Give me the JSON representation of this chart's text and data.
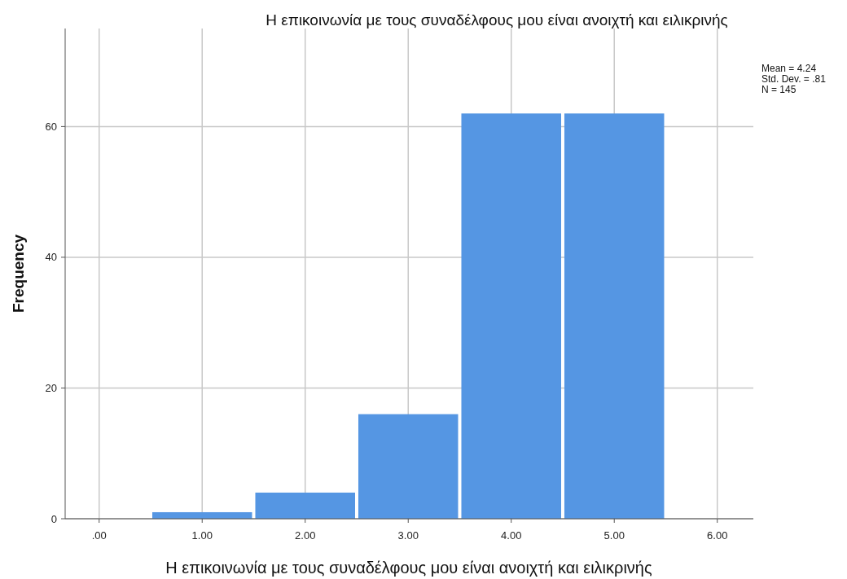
{
  "chart_data": {
    "type": "histogram",
    "title": "Η επικοινωνία με τους συναδέλφους μου είναι ανοιχτή και ειλικρινής",
    "xlabel": "Η επικοινωνία με τους συναδέλφους μου είναι ανοιχτή και ειλικρινής",
    "ylabel": "Frequency",
    "bins": [
      0.5,
      1.5,
      2.5,
      3.5,
      4.5,
      5.5
    ],
    "values": [
      1,
      4,
      16,
      62,
      62
    ],
    "color": "#5596e3",
    "xlim": [
      -0.33,
      6.35
    ],
    "xticks": [
      {
        "value": 0,
        "label": ".00"
      },
      {
        "value": 1,
        "label": "1.00"
      },
      {
        "value": 2,
        "label": "2.00"
      },
      {
        "value": 3,
        "label": "3.00"
      },
      {
        "value": 4,
        "label": "4.00"
      },
      {
        "value": 5,
        "label": "5.00"
      },
      {
        "value": 6,
        "label": "6.00"
      }
    ],
    "ylim": [
      0,
      75
    ],
    "yticks": [
      0,
      20,
      40,
      60
    ],
    "grid": true,
    "annotations": [
      "Mean = 4.24",
      "Std. Dev. = .81",
      "N = 145"
    ]
  }
}
